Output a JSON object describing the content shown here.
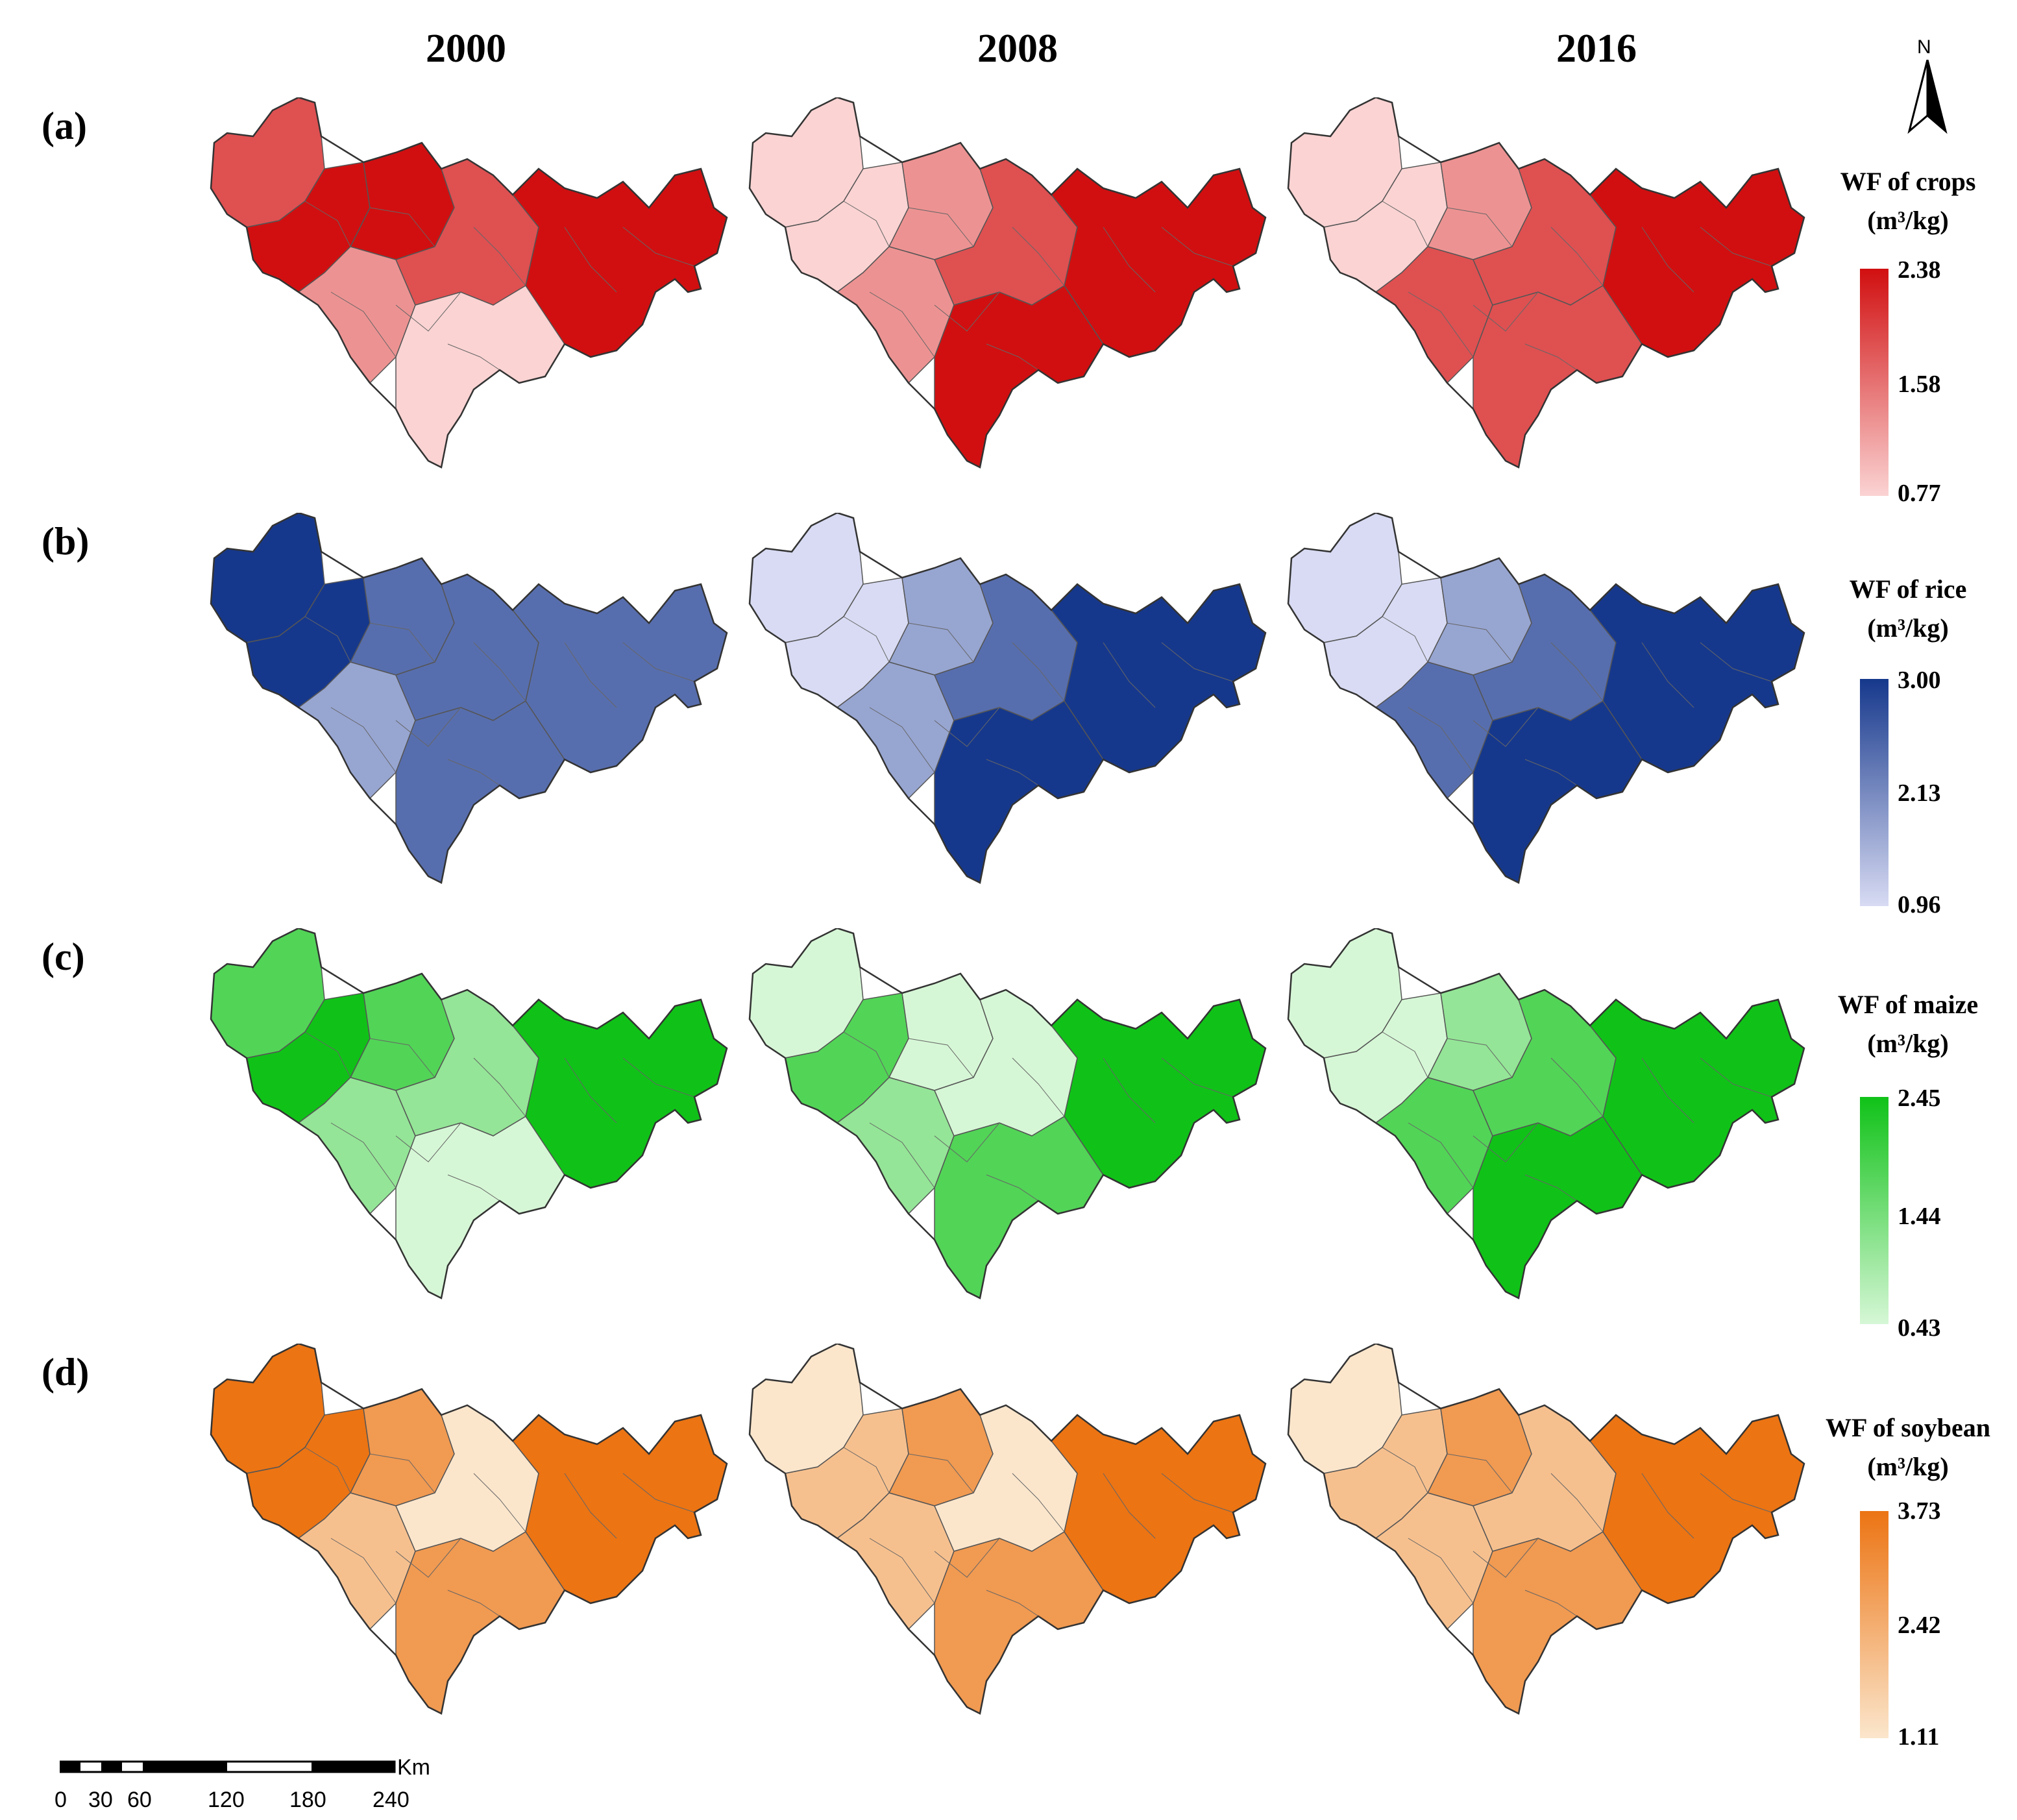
{
  "years": [
    "2000",
    "2008",
    "2016"
  ],
  "panels": [
    {
      "label": "(a)",
      "title_line1": "WF of crops",
      "unit": "(m³/kg)",
      "max": "2.38",
      "mid": "1.58",
      "min": "0.77",
      "color_light": "#fbd3d3",
      "color_dark": "#d10f10",
      "levels": [
        [
          3,
          4,
          4,
          2,
          3,
          1,
          4
        ],
        [
          1,
          1,
          2,
          2,
          3,
          4,
          4
        ],
        [
          1,
          1,
          2,
          3,
          3,
          3,
          4
        ]
      ]
    },
    {
      "label": "(b)",
      "title_line1": "WF of rice",
      "unit": "(m³/kg)",
      "max": "3.00",
      "mid": "2.13",
      "min": "0.96",
      "color_light": "#d8dbf3",
      "color_dark": "#16388c",
      "levels": [
        [
          4,
          4,
          3,
          2,
          3,
          3,
          3
        ],
        [
          1,
          1,
          2,
          2,
          3,
          4,
          4
        ],
        [
          1,
          1,
          2,
          3,
          3,
          4,
          4
        ]
      ]
    },
    {
      "label": "(c)",
      "title_line1": "WF of maize",
      "unit": "(m³/kg)",
      "max": "2.45",
      "mid": "1.44",
      "min": "0.43",
      "color_light": "#d6f7d6",
      "color_dark": "#10c218",
      "levels": [
        [
          3,
          4,
          3,
          2,
          2,
          1,
          4
        ],
        [
          1,
          3,
          1,
          2,
          1,
          3,
          4
        ],
        [
          1,
          1,
          2,
          3,
          3,
          4,
          4
        ]
      ]
    },
    {
      "label": "(d)",
      "title_line1": "WF of soybean",
      "unit": "(m³/kg)",
      "max": "3.73",
      "mid": "2.42",
      "min": "1.11",
      "color_light": "#fbe6cc",
      "color_dark": "#ec7413",
      "levels": [
        [
          4,
          4,
          3,
          2,
          1,
          3,
          4
        ],
        [
          1,
          2,
          3,
          2,
          1,
          3,
          4
        ],
        [
          1,
          2,
          3,
          2,
          2,
          3,
          4
        ]
      ]
    }
  ],
  "north_label": "N",
  "scale": {
    "unit": "Km",
    "ticks": [
      "0",
      "30",
      "60",
      "120",
      "180",
      "240"
    ]
  }
}
